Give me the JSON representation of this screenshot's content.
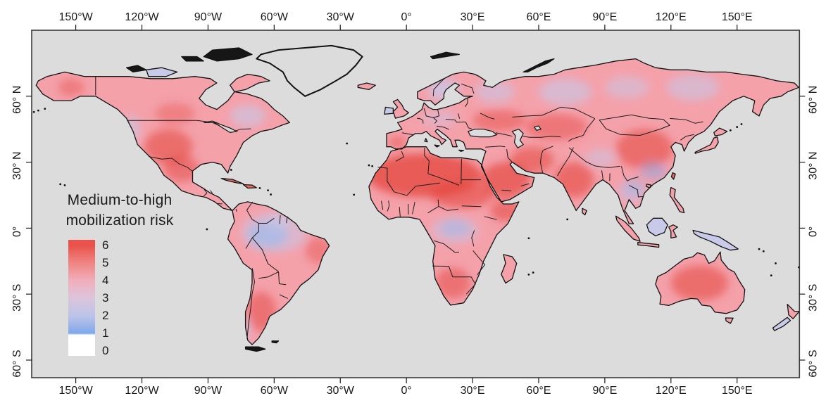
{
  "figure": {
    "background": "#ffffff",
    "frame_color": "#3b3b3b",
    "ocean_color": "#dcdcdc",
    "label_color": "#1a1a1a",
    "coast_color": "#121212",
    "border_color": "#1c1c1c",
    "land_base_color": "#f4a1aa",
    "land_hot_color": "#ec6a63",
    "land_cool_color": "#c9cae9",
    "land_dark_color": "#161616",
    "nodata_color": "#dcdcdc",
    "blob_hot_color": "#e4433b",
    "blob_blue_color": "#7fa9ea",
    "blob_lavender_color": "#c7c9ea"
  },
  "axes": {
    "top_labels": [
      "150°W",
      "120°W",
      "90°W",
      "60°W",
      "30°W",
      "0°",
      "30°E",
      "60°E",
      "90°E",
      "120°E",
      "150°E"
    ],
    "bottom_labels": [
      "150°W",
      "120°W",
      "90°W",
      "60°W",
      "30°W",
      "0°",
      "30°E",
      "60°E",
      "90°E",
      "120°E",
      "150°E"
    ],
    "left_labels": [
      "60° N",
      "30° N",
      "0°",
      "30° S",
      "60° S"
    ],
    "right_labels": [
      "60° N",
      "30° N",
      "0°",
      "30° S",
      "60° S"
    ],
    "lon_tick_values": [
      -150,
      -120,
      -90,
      -60,
      -30,
      0,
      30,
      60,
      90,
      120,
      150
    ],
    "lat_tick_values": [
      60,
      30,
      0,
      -30,
      -60
    ]
  },
  "legend": {
    "title_line1": "Medium-to-high",
    "title_line2": "mobilization risk",
    "tick_labels": [
      "6",
      "5",
      "4",
      "3",
      "2",
      "1",
      "0"
    ],
    "scale_colors": [
      "#ea524b",
      "#ef8583",
      "#f0aebb",
      "#dcc5dc",
      "#bcc4e8",
      "#7fa9ea",
      "#ffffff"
    ]
  },
  "map_data": {
    "type": "raster-choropleth-world-map",
    "variable": "Medium-to-high mobilization risk",
    "scale_min": 0,
    "scale_max": 6,
    "projection": "equirectangular",
    "extent": {
      "lon": [
        -170,
        178
      ],
      "lat": [
        -68,
        90
      ]
    },
    "regions_summary": [
      {
        "region": "Sahara / North Africa",
        "approx_risk": "5-6"
      },
      {
        "region": "Middle East & Arabian Peninsula",
        "approx_risk": "5-6"
      },
      {
        "region": "South Asia (India, Pakistan)",
        "approx_risk": "5-6"
      },
      {
        "region": "Northern & eastern China",
        "approx_risk": "4-6"
      },
      {
        "region": "Western United States & northern Mexico",
        "approx_risk": "4-6"
      },
      {
        "region": "Australia interior",
        "approx_risk": "4-5"
      },
      {
        "region": "Southern Africa / Kalahari",
        "approx_risk": "4-5"
      },
      {
        "region": "Argentina / Patagonia",
        "approx_risk": "4-5"
      },
      {
        "region": "Europe",
        "approx_risk": "3-5 mixed"
      },
      {
        "region": "Boreal Canada & Siberia",
        "approx_risk": "3-4"
      },
      {
        "region": "Scandinavia, Pacific Northwest, Quebec",
        "approx_risk": "2-3"
      },
      {
        "region": "Amazon basin",
        "approx_risk": "1-2"
      },
      {
        "region": "Congo basin",
        "approx_risk": "2-3"
      },
      {
        "region": "Borneo / New Guinea",
        "approx_risk": "2-3"
      },
      {
        "region": "Greenland",
        "approx_risk": "no data"
      }
    ]
  }
}
